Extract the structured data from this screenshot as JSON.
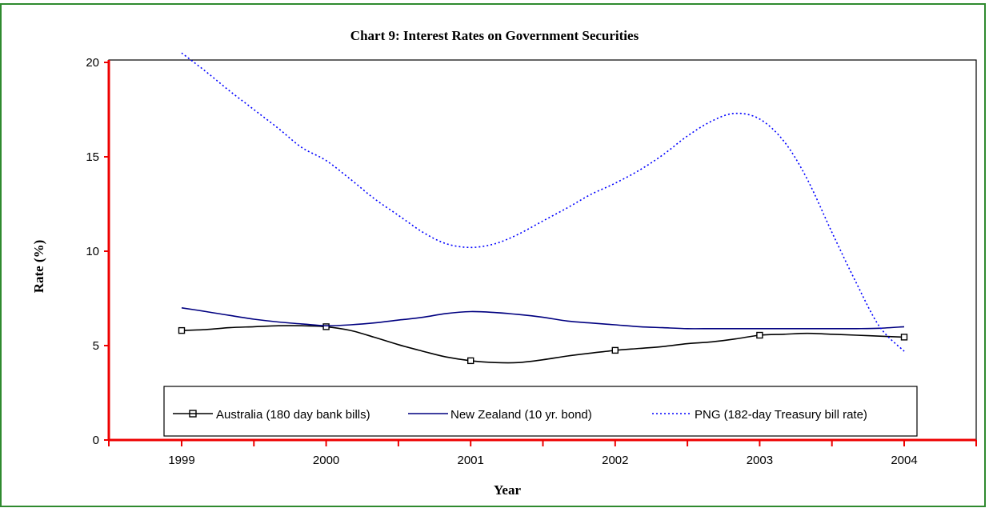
{
  "chart_data": {
    "type": "line",
    "title": "Chart 9: Interest Rates on Government Securities",
    "xlabel": "Year",
    "ylabel": "Rate (%)",
    "x_ticks": [
      "1999",
      "2000",
      "2001",
      "2002",
      "2003",
      "2004"
    ],
    "y_ticks": [
      "0",
      "5",
      "10",
      "15",
      "20"
    ],
    "xlim": [
      1999,
      2004
    ],
    "ylim": [
      0,
      20
    ],
    "grid": false,
    "legend_position": "bottom-inside",
    "series": [
      {
        "name": "Australia (180 day bank bills)",
        "color": "#000000",
        "style": "solid",
        "marker": "square",
        "markers_at": [
          1999,
          2000,
          2001,
          2002,
          2003,
          2004
        ],
        "x": [
          1999,
          1999.17,
          1999.33,
          1999.5,
          1999.67,
          1999.83,
          2000,
          2000.17,
          2000.33,
          2000.5,
          2000.67,
          2000.83,
          2001,
          2001.17,
          2001.33,
          2001.5,
          2001.67,
          2001.83,
          2002,
          2002.17,
          2002.33,
          2002.5,
          2002.67,
          2002.83,
          2003,
          2003.17,
          2003.33,
          2003.5,
          2003.67,
          2003.83,
          2004
        ],
        "y": [
          5.8,
          5.85,
          5.95,
          6.0,
          6.05,
          6.05,
          6.0,
          5.8,
          5.45,
          5.05,
          4.7,
          4.4,
          4.2,
          4.1,
          4.1,
          4.25,
          4.45,
          4.6,
          4.75,
          4.85,
          4.95,
          5.1,
          5.2,
          5.35,
          5.55,
          5.6,
          5.65,
          5.6,
          5.55,
          5.5,
          5.45
        ]
      },
      {
        "name": "New Zealand (10 yr. bond)",
        "color": "#000080",
        "style": "solid",
        "marker": "none",
        "x": [
          1999,
          1999.17,
          1999.33,
          1999.5,
          1999.67,
          1999.83,
          2000,
          2000.17,
          2000.33,
          2000.5,
          2000.67,
          2000.83,
          2001,
          2001.17,
          2001.33,
          2001.5,
          2001.67,
          2001.83,
          2002,
          2002.17,
          2002.33,
          2002.5,
          2002.67,
          2002.83,
          2003,
          2003.17,
          2003.33,
          2003.5,
          2003.67,
          2003.83,
          2004
        ],
        "y": [
          7.0,
          6.8,
          6.6,
          6.4,
          6.25,
          6.15,
          6.05,
          6.1,
          6.2,
          6.35,
          6.5,
          6.7,
          6.8,
          6.75,
          6.65,
          6.5,
          6.3,
          6.2,
          6.1,
          6.0,
          5.95,
          5.9,
          5.9,
          5.9,
          5.9,
          5.9,
          5.9,
          5.9,
          5.9,
          5.92,
          6.0
        ]
      },
      {
        "name": "PNG (182-day Treasury bill rate)",
        "color": "#0000ff",
        "style": "dotted",
        "marker": "none",
        "x": [
          1999,
          1999.17,
          1999.33,
          1999.5,
          1999.67,
          1999.83,
          2000,
          2000.17,
          2000.33,
          2000.5,
          2000.67,
          2000.83,
          2001,
          2001.17,
          2001.33,
          2001.5,
          2001.67,
          2001.83,
          2002,
          2002.17,
          2002.33,
          2002.5,
          2002.67,
          2002.83,
          2003,
          2003.17,
          2003.33,
          2003.5,
          2003.67,
          2003.83,
          2004
        ],
        "y": [
          20.5,
          19.5,
          18.5,
          17.5,
          16.5,
          15.5,
          14.8,
          13.8,
          12.8,
          11.9,
          11.0,
          10.4,
          10.2,
          10.4,
          10.9,
          11.6,
          12.3,
          13.0,
          13.6,
          14.3,
          15.1,
          16.1,
          16.9,
          17.3,
          17.0,
          15.8,
          13.8,
          11.0,
          8.3,
          6.0,
          4.7
        ]
      }
    ]
  }
}
